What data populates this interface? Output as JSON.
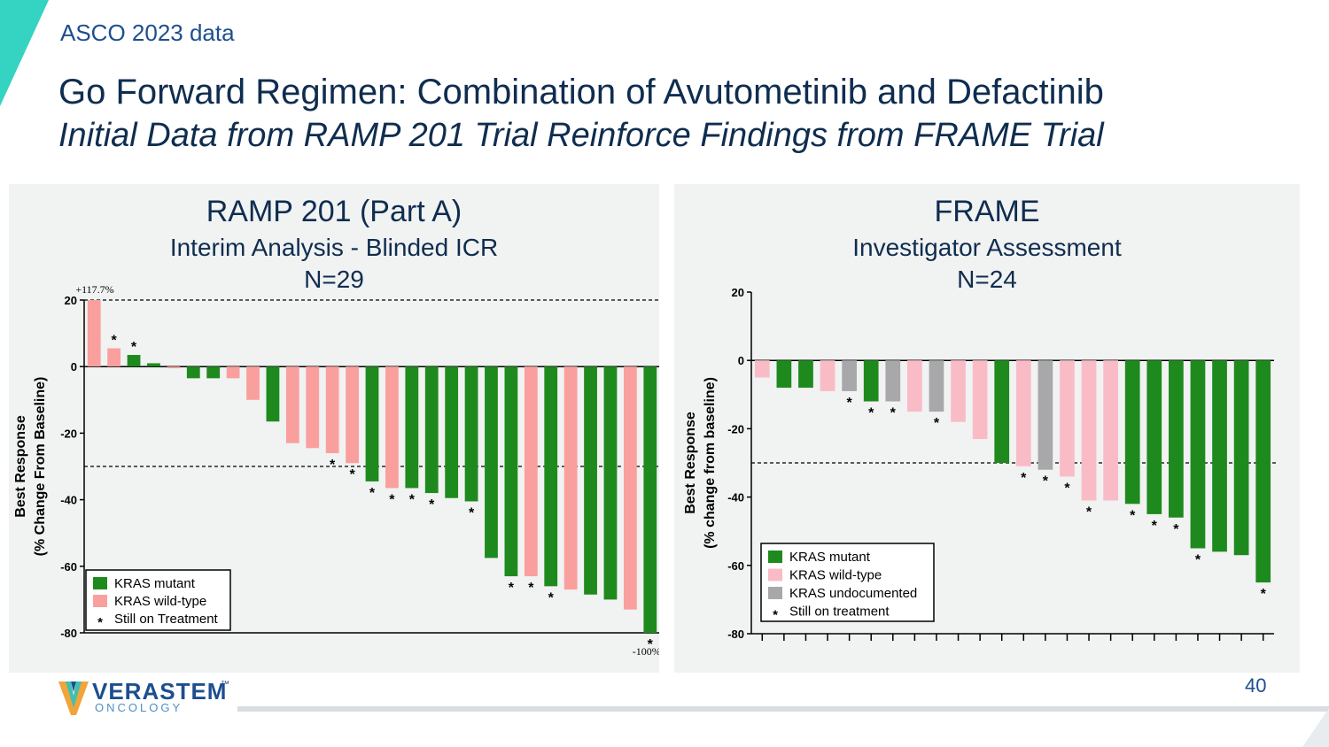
{
  "header": {
    "kicker": "ASCO 2023 data",
    "title": "Go Forward Regimen: Combination of Avutometinib and Defactinib",
    "subtitle": "Initial Data from RAMP 201 Trial Reinforce Findings from FRAME Trial"
  },
  "footer": {
    "page_number": "40",
    "logo_word": "VERASTEM",
    "logo_sub": "ONCOLOGY",
    "logo_tm": "™"
  },
  "colors": {
    "mutant": "#1e8a1e",
    "wild_left": "#f9a09e",
    "wild_right": "#f9bcc7",
    "undoc": "#a8a8aa",
    "title": "#0f2d4f",
    "accent": "#35d3c2"
  },
  "chart_data": [
    {
      "type": "bar",
      "title": "RAMP 201 (Part A)",
      "subtitle": "Interim Analysis - Blinded ICR",
      "n_label": "N=29",
      "ylabel": "Best Response",
      "ylabel2": "(% Change From Baseline)",
      "ylim": [
        -80,
        20
      ],
      "yticks": [
        20,
        0,
        -20,
        -40,
        -60,
        -80
      ],
      "reference_lines": [
        20,
        -30
      ],
      "values": [
        20,
        5.5,
        3.5,
        1,
        -0.5,
        -3.5,
        -3.5,
        -3.5,
        -10,
        -16.5,
        -23,
        -24.5,
        -26,
        -29,
        -34.5,
        -36.5,
        -36.5,
        -38,
        -39.5,
        -40.5,
        -57.5,
        -63,
        -63,
        -66,
        -67,
        -68.5,
        -70,
        -73,
        -80
      ],
      "groups": [
        "w",
        "w",
        "m",
        "m",
        "w",
        "m",
        "m",
        "w",
        "w",
        "m",
        "w",
        "w",
        "w",
        "w",
        "m",
        "w",
        "m",
        "m",
        "m",
        "m",
        "m",
        "m",
        "w",
        "m",
        "w",
        "m",
        "m",
        "w",
        "m"
      ],
      "still_on_treatment": [
        false,
        true,
        true,
        false,
        false,
        false,
        false,
        false,
        false,
        false,
        false,
        false,
        true,
        true,
        true,
        true,
        true,
        true,
        false,
        true,
        false,
        true,
        true,
        true,
        false,
        false,
        false,
        false,
        true
      ],
      "annotations": {
        "top": "+117.7%",
        "bottom": "-100%"
      },
      "legend": [
        {
          "label": "KRAS mutant",
          "key": "mutant"
        },
        {
          "label": "KRAS wild-type",
          "key": "wild"
        },
        {
          "label": "Still on Treatment",
          "key": "star"
        }
      ],
      "star_symbol": "*"
    },
    {
      "type": "bar",
      "title": "FRAME",
      "subtitle": "Investigator Assessment",
      "n_label": "N=24",
      "ylabel": "Best  Response",
      "ylabel2": "(% change from baseline)",
      "ylim": [
        -80,
        20
      ],
      "yticks": [
        20,
        0,
        -20,
        -40,
        -60,
        -80
      ],
      "reference_lines": [
        -30
      ],
      "values": [
        -5,
        -8,
        -8,
        -9,
        -9,
        -12,
        -12,
        -15,
        -15,
        -18,
        -23,
        -30,
        -31,
        -32,
        -34,
        -41,
        -41,
        -42,
        -45,
        -46,
        -55,
        -56,
        -57,
        -65
      ],
      "groups": [
        "w",
        "m",
        "m",
        "w",
        "u",
        "m",
        "u",
        "w",
        "u",
        "w",
        "w",
        "m",
        "w",
        "u",
        "w",
        "w",
        "w",
        "m",
        "m",
        "m",
        "m",
        "m",
        "m",
        "m"
      ],
      "still_on_treatment": [
        false,
        false,
        false,
        false,
        true,
        true,
        true,
        false,
        true,
        false,
        false,
        false,
        true,
        true,
        true,
        true,
        false,
        true,
        true,
        true,
        true,
        false,
        false,
        true
      ],
      "legend": [
        {
          "label": "KRAS mutant",
          "key": "mutant"
        },
        {
          "label": "KRAS wild-type",
          "key": "wild"
        },
        {
          "label": "KRAS undocumented",
          "key": "undoc"
        },
        {
          "label": "Still on treatment",
          "key": "star"
        }
      ],
      "star_symbol": "*"
    }
  ]
}
